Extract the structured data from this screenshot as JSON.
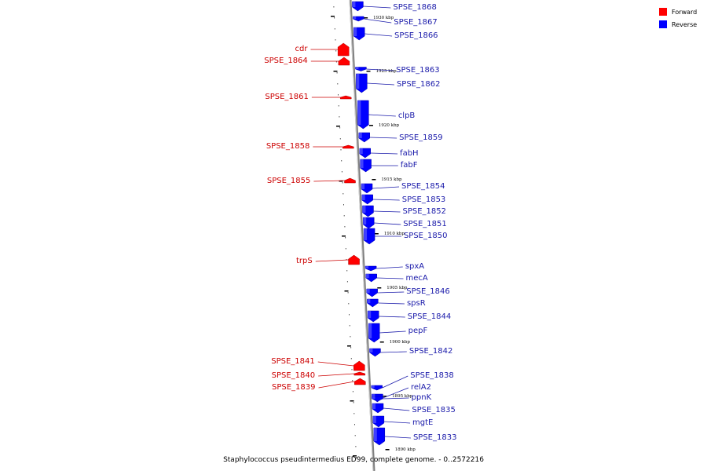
{
  "title": "Staphylococcus pseudintermedius ED99, complete genome. - 0..2572216",
  "legend": [
    {
      "label": "Forward",
      "color": "#ff0000"
    },
    {
      "label": "Reverse",
      "color": "#0000ff"
    }
  ],
  "colors": {
    "forward": "#ff0000",
    "reverse": "#0000ff",
    "forward_label": "#cc0000",
    "reverse_label": "#1a1aaa",
    "backbone": "#808080"
  },
  "ticks": [
    {
      "label": "1930 kbp"
    },
    {
      "label": "1925 kbp"
    },
    {
      "label": "1920 kbp"
    },
    {
      "label": "1915 kbp"
    },
    {
      "label": "1910 kbp"
    },
    {
      "label": "1905 kbp"
    },
    {
      "label": "1900 kbp"
    },
    {
      "label": "1895 kbp"
    },
    {
      "label": "1890 kbp"
    }
  ],
  "genes_reverse": [
    {
      "name": "SPSE_1868"
    },
    {
      "name": "SPSE_1867"
    },
    {
      "name": "SPSE_1866"
    },
    {
      "name": "SPSE_1863"
    },
    {
      "name": "SPSE_1862"
    },
    {
      "name": "clpB"
    },
    {
      "name": "SPSE_1859"
    },
    {
      "name": "fabH"
    },
    {
      "name": "fabF"
    },
    {
      "name": "SPSE_1854"
    },
    {
      "name": "SPSE_1853"
    },
    {
      "name": "SPSE_1852"
    },
    {
      "name": "SPSE_1851"
    },
    {
      "name": "SPSE_1850"
    },
    {
      "name": "spxA"
    },
    {
      "name": "mecA"
    },
    {
      "name": "SPSE_1846"
    },
    {
      "name": "spsR"
    },
    {
      "name": "SPSE_1844"
    },
    {
      "name": "pepF"
    },
    {
      "name": "SPSE_1842"
    },
    {
      "name": "SPSE_1838"
    },
    {
      "name": "relA2"
    },
    {
      "name": "ppnK"
    },
    {
      "name": "SPSE_1835"
    },
    {
      "name": "mgtE"
    },
    {
      "name": "SPSE_1833"
    }
  ],
  "genes_forward": [
    {
      "name": "cdr"
    },
    {
      "name": "SPSE_1864"
    },
    {
      "name": "SPSE_1861"
    },
    {
      "name": "SPSE_1858"
    },
    {
      "name": "SPSE_1855"
    },
    {
      "name": "trpS"
    },
    {
      "name": "SPSE_1841"
    },
    {
      "name": "SPSE_1840"
    },
    {
      "name": "SPSE_1839"
    }
  ]
}
